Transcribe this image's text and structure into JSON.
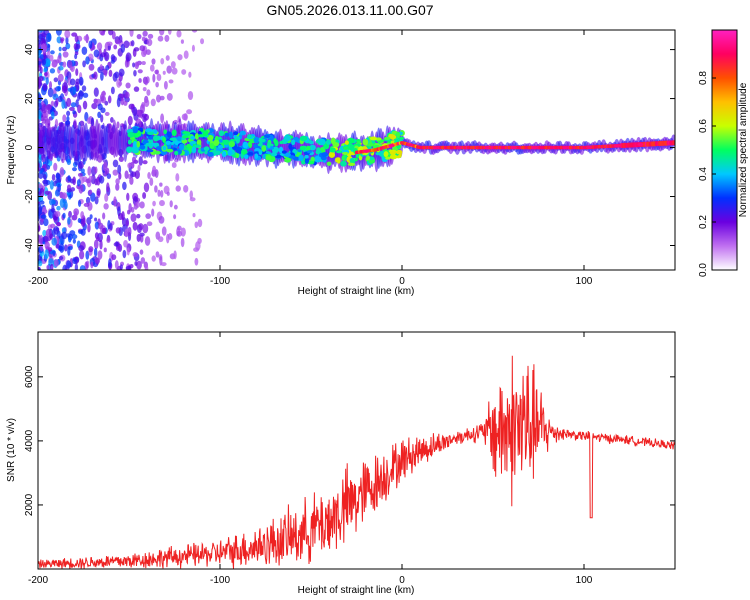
{
  "figure": {
    "title": "GN05.2026.013.11.00.G07"
  },
  "chart_data": [
    {
      "type": "heatmap",
      "title": "GN05.2026.013.11.00.G07",
      "xlabel": "Height of straight line (km)",
      "ylabel": "Frequency (Hz)",
      "xlim": [
        -200,
        150
      ],
      "ylim": [
        -50,
        48
      ],
      "xticks": [
        {
          "value": -200,
          "label": "-200"
        },
        {
          "value": -100,
          "label": "-100"
        },
        {
          "value": 0,
          "label": "0"
        },
        {
          "value": 100,
          "label": "100"
        }
      ],
      "yticks": [
        {
          "value": 40,
          "label": "40"
        },
        {
          "value": 20,
          "label": "20"
        },
        {
          "value": 0,
          "label": "0"
        },
        {
          "value": -20,
          "label": "-20"
        },
        {
          "value": -40,
          "label": "-40"
        }
      ],
      "colorbar": {
        "label": "Normalized spectral amplitude",
        "range": [
          0,
          1
        ],
        "ticks": [
          {
            "value": 0.0,
            "label": "0.0"
          },
          {
            "value": 0.2,
            "label": "0.2"
          },
          {
            "value": 0.4,
            "label": "0.4"
          },
          {
            "value": 0.6,
            "label": "0.6"
          },
          {
            "value": 0.8,
            "label": "0.8"
          }
        ],
        "colors": [
          "#ffffff",
          "#c070f0",
          "#6a00e0",
          "#0030ff",
          "#00c8ff",
          "#00ff60",
          "#c8ff00",
          "#ffc000",
          "#ff5000",
          "#ff0060",
          "#ff20c0"
        ]
      },
      "ridge": [
        {
          "x": -200,
          "y": 2
        },
        {
          "x": -150,
          "y": 3
        },
        {
          "x": -100,
          "y": 2
        },
        {
          "x": -70,
          "y": 0
        },
        {
          "x": -40,
          "y": -2
        },
        {
          "x": -25,
          "y": -2
        },
        {
          "x": -15,
          "y": -1
        },
        {
          "x": 0,
          "y": 2
        },
        {
          "x": 10,
          "y": 0
        },
        {
          "x": 50,
          "y": 0
        },
        {
          "x": 100,
          "y": 0
        },
        {
          "x": 150,
          "y": 2
        }
      ]
    },
    {
      "type": "line",
      "xlabel": "Height of straight line (km)",
      "ylabel": "SNR (10 * v/v)",
      "xlim": [
        -200,
        150
      ],
      "ylim": [
        0,
        7400
      ],
      "xticks": [
        {
          "value": -200,
          "label": "-200"
        },
        {
          "value": -100,
          "label": "-100"
        },
        {
          "value": 0,
          "label": "0"
        },
        {
          "value": 100,
          "label": "100"
        }
      ],
      "yticks": [
        {
          "value": 2000,
          "label": "2000"
        },
        {
          "value": 4000,
          "label": "4000"
        },
        {
          "value": 6000,
          "label": "6000"
        }
      ],
      "series": [
        {
          "name": "SNR",
          "color": "#ee2222",
          "envelope": [
            {
              "x": -200,
              "y": 150
            },
            {
              "x": -150,
              "y": 250
            },
            {
              "x": -120,
              "y": 400
            },
            {
              "x": -100,
              "y": 500
            },
            {
              "x": -80,
              "y": 700
            },
            {
              "x": -60,
              "y": 1000
            },
            {
              "x": -40,
              "y": 1500
            },
            {
              "x": -20,
              "y": 2400
            },
            {
              "x": -10,
              "y": 2900
            },
            {
              "x": 0,
              "y": 3400
            },
            {
              "x": 10,
              "y": 3700
            },
            {
              "x": 20,
              "y": 3900
            },
            {
              "x": 30,
              "y": 4100
            },
            {
              "x": 40,
              "y": 4250
            },
            {
              "x": 50,
              "y": 4300
            },
            {
              "x": 60,
              "y": 4400
            },
            {
              "x": 70,
              "y": 4500
            },
            {
              "x": 80,
              "y": 4300
            },
            {
              "x": 100,
              "y": 4150
            },
            {
              "x": 120,
              "y": 4050
            },
            {
              "x": 150,
              "y": 3850
            }
          ],
          "noise_amplitude": [
            {
              "x": -200,
              "y": 150
            },
            {
              "x": -150,
              "y": 300
            },
            {
              "x": -100,
              "y": 500
            },
            {
              "x": -60,
              "y": 1100
            },
            {
              "x": -30,
              "y": 1500
            },
            {
              "x": 0,
              "y": 800
            },
            {
              "x": 30,
              "y": 250
            },
            {
              "x": 45,
              "y": 400
            },
            {
              "x": 50,
              "y": 1800
            },
            {
              "x": 60,
              "y": 2800
            },
            {
              "x": 66,
              "y": 3000
            },
            {
              "x": 75,
              "y": 1800
            },
            {
              "x": 82,
              "y": 500
            },
            {
              "x": 90,
              "y": 200
            },
            {
              "x": 150,
              "y": 150
            }
          ],
          "spikes": [
            {
              "x": 104,
              "y": 1600
            }
          ]
        }
      ]
    }
  ]
}
